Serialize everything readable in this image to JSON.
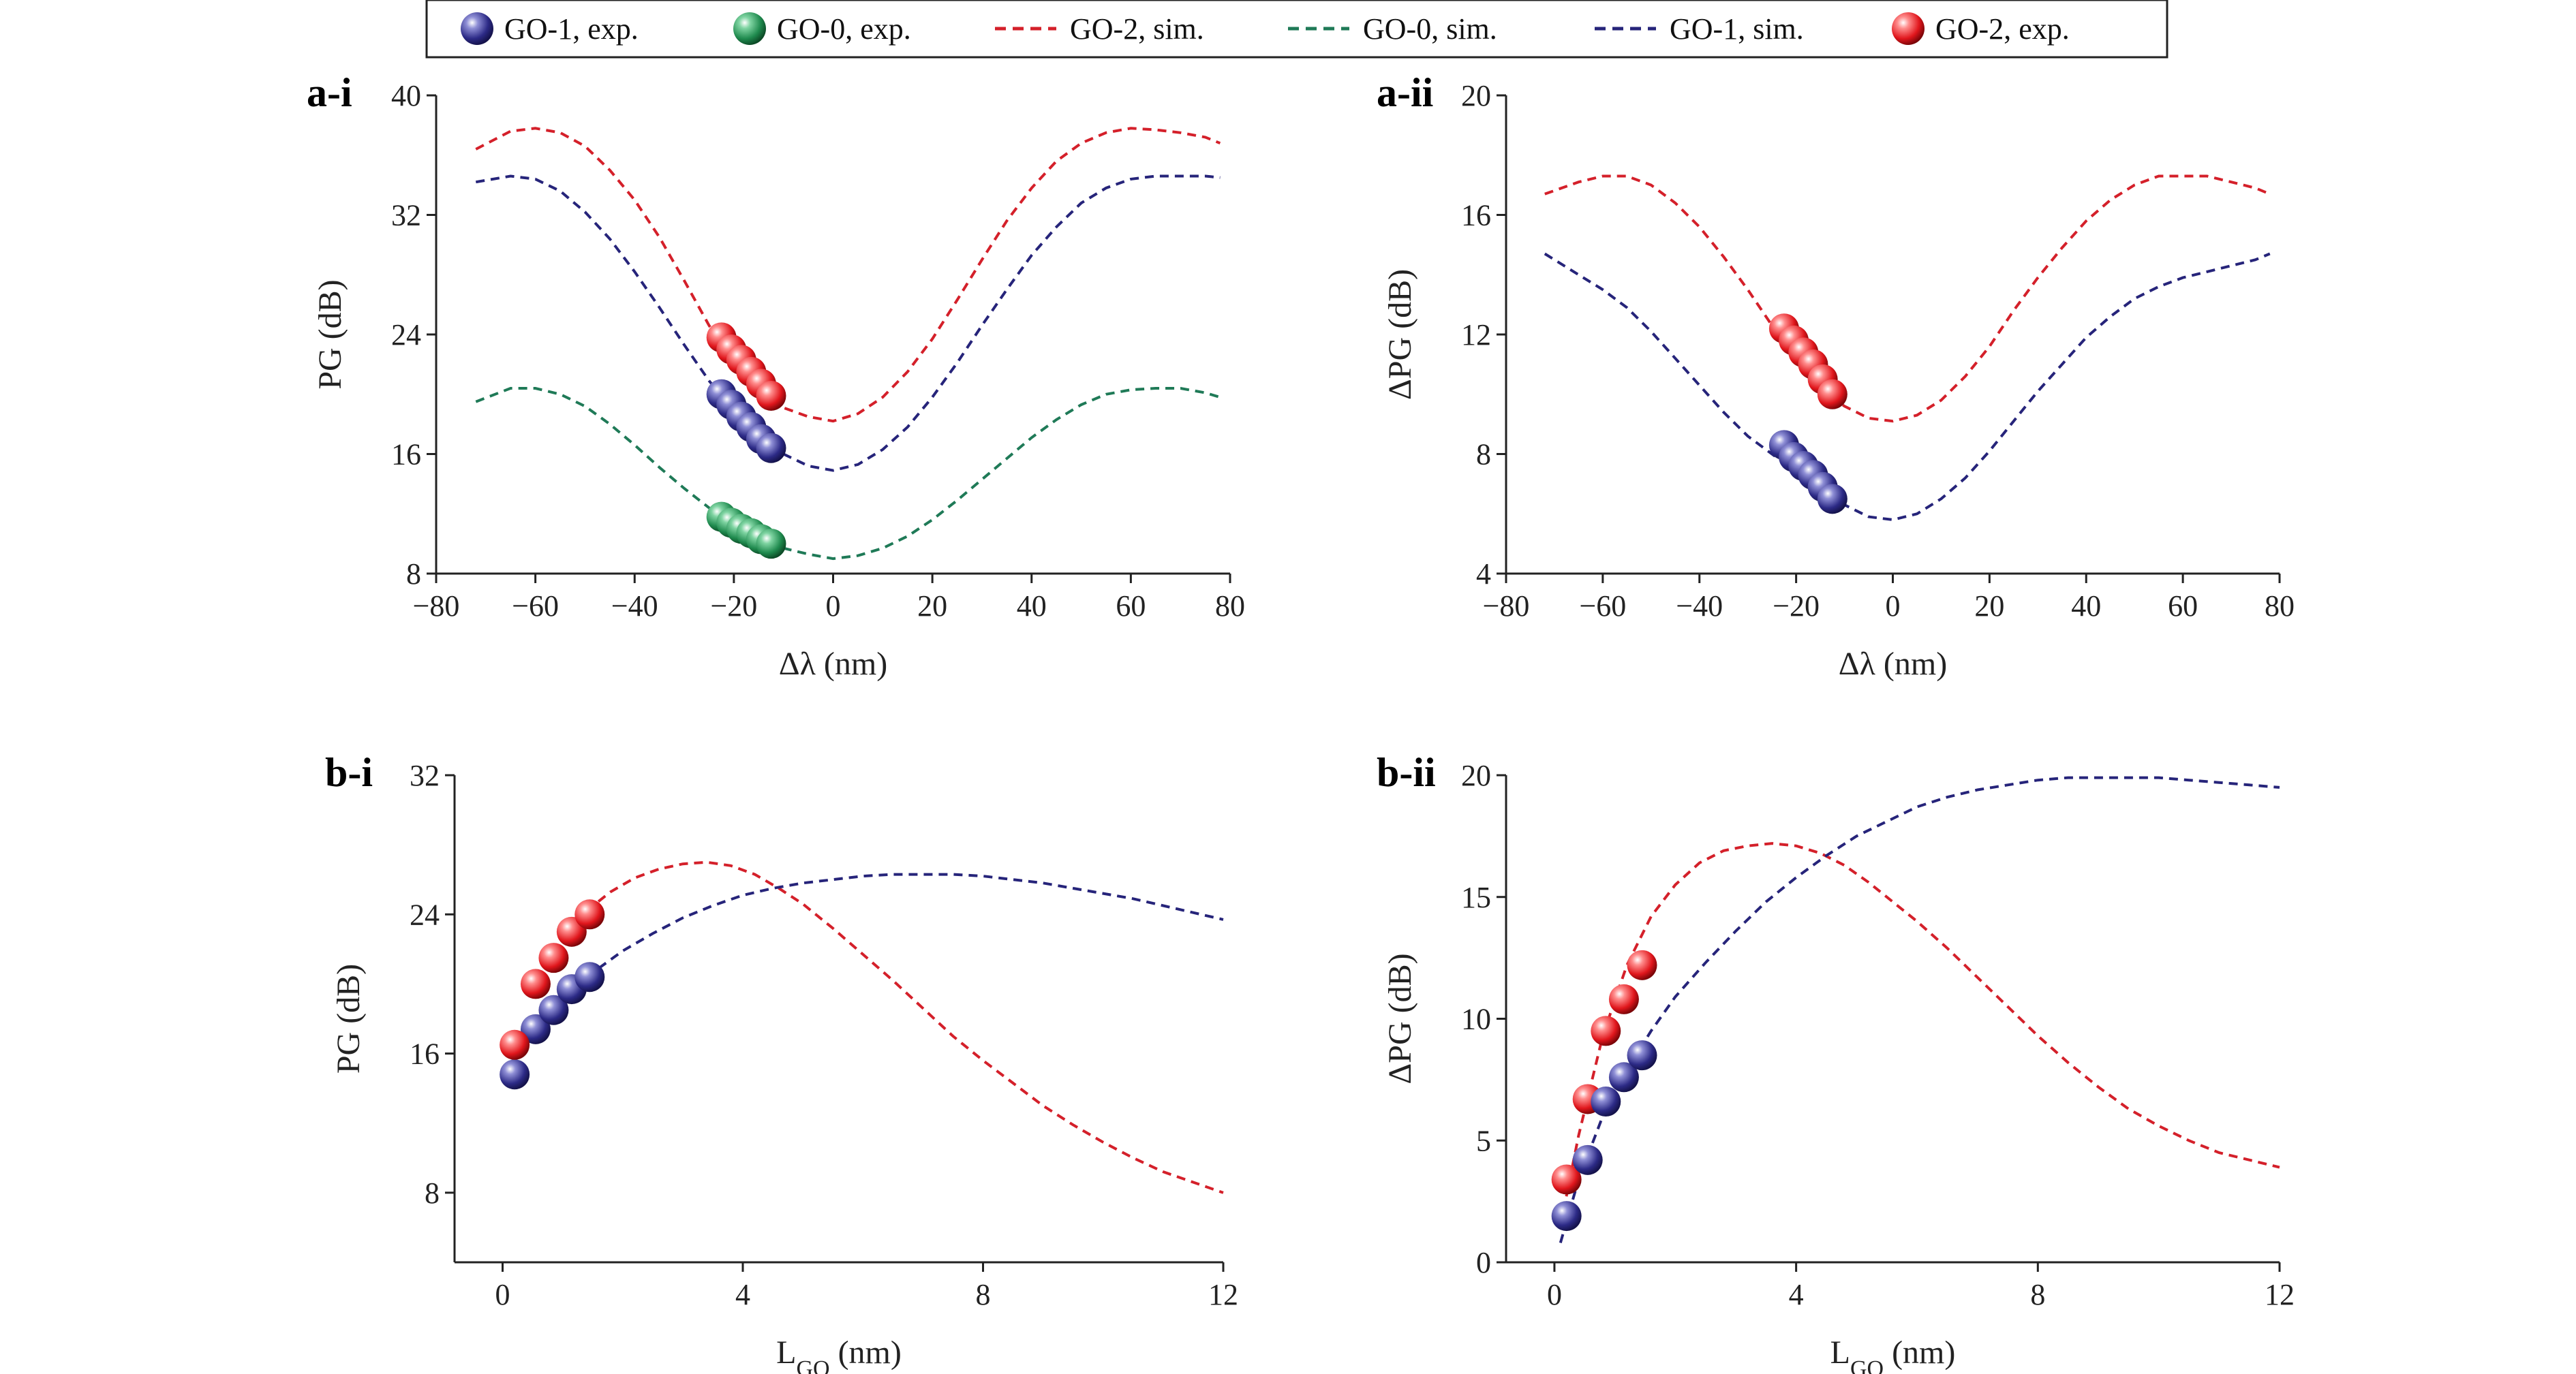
{
  "legend": {
    "placement": "top-center",
    "entries": [
      {
        "key": "go1exp",
        "label": "GO-1, exp.",
        "kind": "marker",
        "color": "#26247a"
      },
      {
        "key": "go0exp",
        "label": "GO-0, exp.",
        "kind": "marker",
        "color": "#1f7a45"
      },
      {
        "key": "go2sim",
        "label": "GO-2, sim.",
        "kind": "line",
        "color": "#d4202a"
      },
      {
        "key": "go0sim",
        "label": "GO-0, sim.",
        "kind": "line",
        "color": "#1f7a57"
      },
      {
        "key": "go1sim",
        "label": "GO-1, sim.",
        "kind": "line",
        "color": "#26247a"
      },
      {
        "key": "go2exp",
        "label": "GO-2, exp.",
        "kind": "marker",
        "color": "#d4202a"
      }
    ]
  },
  "chart_data": [
    {
      "id": "ai",
      "panel_label": "a-i",
      "type": "scatter",
      "xlabel": "Δλ (nm)",
      "ylabel": "PG (dB)",
      "xlim": [
        -80,
        80
      ],
      "ylim": [
        8,
        40
      ],
      "xticks": [
        -80,
        -60,
        -40,
        -20,
        0,
        20,
        40,
        60,
        80
      ],
      "yticks": [
        8,
        16,
        24,
        32,
        40
      ],
      "grid": false,
      "series": [
        {
          "key": "go2sim",
          "kind": "line",
          "color": "#d4202a",
          "x": [
            -72,
            -65,
            -60,
            -55,
            -50,
            -45,
            -40,
            -35,
            -30,
            -25,
            -20,
            -15,
            -10,
            -5,
            0,
            5,
            10,
            15,
            20,
            25,
            30,
            35,
            40,
            45,
            50,
            55,
            60,
            65,
            70,
            75,
            78
          ],
          "y": [
            36.4,
            37.6,
            37.8,
            37.5,
            36.6,
            35.0,
            33.0,
            30.5,
            27.6,
            24.6,
            22.2,
            20.4,
            19.1,
            18.5,
            18.2,
            18.7,
            19.8,
            21.5,
            23.7,
            26.3,
            29.0,
            31.6,
            33.8,
            35.6,
            36.8,
            37.5,
            37.8,
            37.7,
            37.5,
            37.2,
            36.8
          ]
        },
        {
          "key": "go1sim",
          "kind": "line",
          "color": "#26247a",
          "x": [
            -72,
            -65,
            -60,
            -55,
            -50,
            -45,
            -40,
            -35,
            -30,
            -25,
            -20,
            -15,
            -10,
            -5,
            0,
            5,
            10,
            15,
            20,
            25,
            30,
            35,
            40,
            45,
            50,
            55,
            60,
            65,
            70,
            75,
            78
          ],
          "y": [
            34.2,
            34.6,
            34.4,
            33.6,
            32.2,
            30.4,
            28.2,
            25.8,
            23.3,
            20.9,
            18.9,
            17.2,
            16.0,
            15.2,
            14.9,
            15.3,
            16.3,
            17.8,
            19.8,
            22.1,
            24.6,
            27.0,
            29.3,
            31.2,
            32.8,
            33.8,
            34.4,
            34.6,
            34.6,
            34.6,
            34.5
          ]
        },
        {
          "key": "go0sim",
          "kind": "line",
          "color": "#1f7a57",
          "x": [
            -72,
            -65,
            -60,
            -55,
            -50,
            -45,
            -40,
            -35,
            -30,
            -25,
            -20,
            -15,
            -10,
            -5,
            0,
            5,
            10,
            15,
            20,
            25,
            30,
            35,
            40,
            45,
            50,
            55,
            60,
            65,
            70,
            75,
            78
          ],
          "y": [
            19.5,
            20.4,
            20.4,
            20.0,
            19.2,
            18.0,
            16.6,
            15.1,
            13.7,
            12.4,
            11.3,
            10.4,
            9.7,
            9.3,
            9.0,
            9.2,
            9.7,
            10.5,
            11.6,
            12.9,
            14.3,
            15.7,
            17.1,
            18.3,
            19.3,
            20.0,
            20.3,
            20.4,
            20.4,
            20.1,
            19.8
          ]
        },
        {
          "key": "go2exp",
          "kind": "marker",
          "color": "#d4202a",
          "x": [
            -22.5,
            -20.5,
            -18.5,
            -16.5,
            -14.5,
            -12.5
          ],
          "y": [
            23.8,
            23.0,
            22.3,
            21.5,
            20.7,
            19.9
          ]
        },
        {
          "key": "go1exp",
          "kind": "marker",
          "color": "#26247a",
          "x": [
            -22.5,
            -20.5,
            -18.5,
            -16.5,
            -14.5,
            -12.5
          ],
          "y": [
            20.0,
            19.3,
            18.5,
            17.8,
            17.0,
            16.4
          ]
        },
        {
          "key": "go0exp",
          "kind": "marker",
          "color": "#1f7a45",
          "x": [
            -22.5,
            -20.5,
            -18.5,
            -16.5,
            -14.5,
            -12.5
          ],
          "y": [
            11.8,
            11.4,
            11.0,
            10.7,
            10.3,
            10.0
          ]
        }
      ]
    },
    {
      "id": "aii",
      "panel_label": "a-ii",
      "type": "scatter",
      "xlabel": "Δλ (nm)",
      "ylabel": "ΔPG (dB)",
      "xlim": [
        -80,
        80
      ],
      "ylim": [
        4,
        20
      ],
      "xticks": [
        -80,
        -60,
        -40,
        -20,
        0,
        20,
        40,
        60,
        80
      ],
      "yticks": [
        4,
        8,
        12,
        16,
        20
      ],
      "grid": false,
      "series": [
        {
          "key": "go2sim",
          "kind": "line",
          "color": "#d4202a",
          "x": [
            -72,
            -65,
            -60,
            -55,
            -50,
            -45,
            -40,
            -35,
            -30,
            -25,
            -20,
            -15,
            -10,
            -5,
            0,
            5,
            10,
            15,
            20,
            25,
            30,
            35,
            40,
            45,
            50,
            55,
            60,
            65,
            70,
            75,
            78
          ],
          "y": [
            16.7,
            17.1,
            17.3,
            17.3,
            17.0,
            16.4,
            15.6,
            14.6,
            13.5,
            12.3,
            11.1,
            10.2,
            9.6,
            9.2,
            9.1,
            9.3,
            9.8,
            10.6,
            11.6,
            12.8,
            13.9,
            14.9,
            15.8,
            16.5,
            17.0,
            17.3,
            17.3,
            17.3,
            17.1,
            16.9,
            16.7
          ]
        },
        {
          "key": "go1sim",
          "kind": "line",
          "color": "#26247a",
          "x": [
            -72,
            -65,
            -60,
            -55,
            -50,
            -45,
            -40,
            -35,
            -30,
            -25,
            -20,
            -15,
            -10,
            -5,
            0,
            5,
            10,
            15,
            20,
            25,
            30,
            35,
            40,
            45,
            50,
            55,
            60,
            65,
            70,
            75,
            78
          ],
          "y": [
            14.7,
            14.0,
            13.5,
            12.9,
            12.1,
            11.2,
            10.3,
            9.4,
            8.6,
            8.0,
            7.4,
            6.8,
            6.3,
            5.9,
            5.8,
            6.0,
            6.5,
            7.2,
            8.1,
            9.1,
            10.1,
            11.0,
            11.9,
            12.6,
            13.2,
            13.6,
            13.9,
            14.1,
            14.3,
            14.5,
            14.7
          ]
        },
        {
          "key": "go2exp",
          "kind": "marker",
          "color": "#d4202a",
          "x": [
            -22.5,
            -20.5,
            -18.5,
            -16.5,
            -14.5,
            -12.5
          ],
          "y": [
            12.2,
            11.8,
            11.4,
            11.0,
            10.5,
            10.0
          ]
        },
        {
          "key": "go1exp",
          "kind": "marker",
          "color": "#26247a",
          "x": [
            -22.5,
            -20.5,
            -18.5,
            -16.5,
            -14.5,
            -12.5
          ],
          "y": [
            8.3,
            7.9,
            7.6,
            7.3,
            6.9,
            6.5
          ]
        }
      ]
    },
    {
      "id": "bi",
      "panel_label": "b-i",
      "type": "scatter",
      "xlabel": "L_GO (nm)",
      "ylabel": "PG (dB)",
      "xlim": [
        -0.8,
        12
      ],
      "ylim": [
        4,
        32
      ],
      "xticks": [
        0,
        4,
        8,
        12
      ],
      "yticks": [
        8,
        16,
        24,
        32
      ],
      "grid": false,
      "series": [
        {
          "key": "go2sim",
          "kind": "line",
          "color": "#d4202a",
          "x": [
            1.4,
            1.8,
            2.2,
            2.6,
            3.0,
            3.4,
            3.8,
            4.2,
            4.6,
            5.0,
            5.5,
            6.0,
            6.5,
            7.0,
            7.5,
            8.0,
            8.5,
            9.0,
            9.5,
            10.0,
            10.5,
            11.0,
            11.5,
            12.0
          ],
          "y": [
            24.2,
            25.3,
            26.1,
            26.6,
            26.9,
            27.0,
            26.8,
            26.3,
            25.5,
            24.6,
            23.2,
            21.7,
            20.2,
            18.6,
            17.0,
            15.6,
            14.3,
            13.0,
            11.9,
            10.9,
            10.0,
            9.2,
            8.6,
            8.0
          ]
        },
        {
          "key": "go1sim",
          "kind": "line",
          "color": "#26247a",
          "x": [
            1.4,
            2.0,
            2.5,
            3.0,
            3.5,
            4.0,
            4.5,
            5.0,
            5.5,
            6.0,
            6.5,
            7.0,
            7.5,
            8.0,
            8.5,
            9.0,
            9.5,
            10.0,
            10.5,
            11.0,
            11.5,
            12.0
          ],
          "y": [
            20.4,
            21.9,
            22.9,
            23.8,
            24.5,
            25.1,
            25.5,
            25.8,
            26.0,
            26.2,
            26.3,
            26.3,
            26.3,
            26.2,
            26.0,
            25.8,
            25.5,
            25.2,
            24.9,
            24.5,
            24.1,
            23.7
          ]
        },
        {
          "key": "go1exp",
          "kind": "marker",
          "color": "#26247a",
          "x": [
            0.2,
            0.55,
            0.85,
            1.15,
            1.45
          ],
          "y": [
            14.8,
            17.4,
            18.5,
            19.7,
            20.4
          ]
        },
        {
          "key": "go2exp",
          "kind": "marker",
          "color": "#d4202a",
          "x": [
            0.2,
            0.55,
            0.85,
            1.15,
            1.45
          ],
          "y": [
            16.5,
            20.0,
            21.5,
            23.0,
            24.0
          ]
        }
      ]
    },
    {
      "id": "bii",
      "panel_label": "b-ii",
      "type": "scatter",
      "xlabel": "L_GO (nm)",
      "ylabel": "ΔPG (dB)",
      "xlim": [
        -0.8,
        12
      ],
      "ylim": [
        0,
        20
      ],
      "xticks": [
        0,
        4,
        8,
        12
      ],
      "yticks": [
        0,
        5,
        10,
        15,
        20
      ],
      "grid": false,
      "series": [
        {
          "key": "go2sim",
          "kind": "line",
          "color": "#d4202a",
          "x": [
            0.1,
            0.4,
            0.8,
            1.2,
            1.6,
            2.0,
            2.4,
            2.8,
            3.2,
            3.6,
            4.0,
            4.4,
            4.8,
            5.2,
            5.6,
            6.0,
            6.5,
            7.0,
            7.5,
            8.0,
            8.5,
            9.0,
            9.5,
            10.0,
            10.5,
            11.0,
            11.5,
            12.0
          ],
          "y": [
            1.5,
            5.2,
            9.3,
            12.2,
            14.2,
            15.5,
            16.4,
            16.9,
            17.1,
            17.2,
            17.1,
            16.8,
            16.3,
            15.6,
            14.8,
            14.0,
            12.9,
            11.7,
            10.5,
            9.3,
            8.2,
            7.2,
            6.3,
            5.6,
            5.0,
            4.5,
            4.2,
            3.9
          ]
        },
        {
          "key": "go1sim",
          "kind": "line",
          "color": "#26247a",
          "x": [
            0.1,
            0.4,
            0.8,
            1.2,
            1.6,
            2.0,
            2.5,
            3.0,
            3.5,
            4.0,
            4.5,
            5.0,
            5.5,
            6.0,
            6.5,
            7.0,
            7.5,
            8.0,
            8.5,
            9.0,
            9.5,
            10.0,
            10.5,
            11.0,
            11.5,
            12.0
          ],
          "y": [
            0.8,
            3.4,
            6.0,
            7.9,
            9.5,
            10.9,
            12.3,
            13.6,
            14.8,
            15.8,
            16.7,
            17.5,
            18.1,
            18.7,
            19.1,
            19.4,
            19.6,
            19.8,
            19.9,
            19.9,
            19.9,
            19.9,
            19.8,
            19.7,
            19.6,
            19.5
          ]
        },
        {
          "key": "go2exp",
          "kind": "marker",
          "color": "#d4202a",
          "x": [
            0.2,
            0.55,
            0.85,
            1.15,
            1.45
          ],
          "y": [
            3.4,
            6.7,
            9.5,
            10.8,
            12.2
          ]
        },
        {
          "key": "go1exp",
          "kind": "marker",
          "color": "#26247a",
          "x": [
            0.2,
            0.55,
            0.85,
            1.15,
            1.45
          ],
          "y": [
            1.9,
            4.2,
            6.6,
            7.6,
            8.5
          ]
        }
      ]
    }
  ]
}
